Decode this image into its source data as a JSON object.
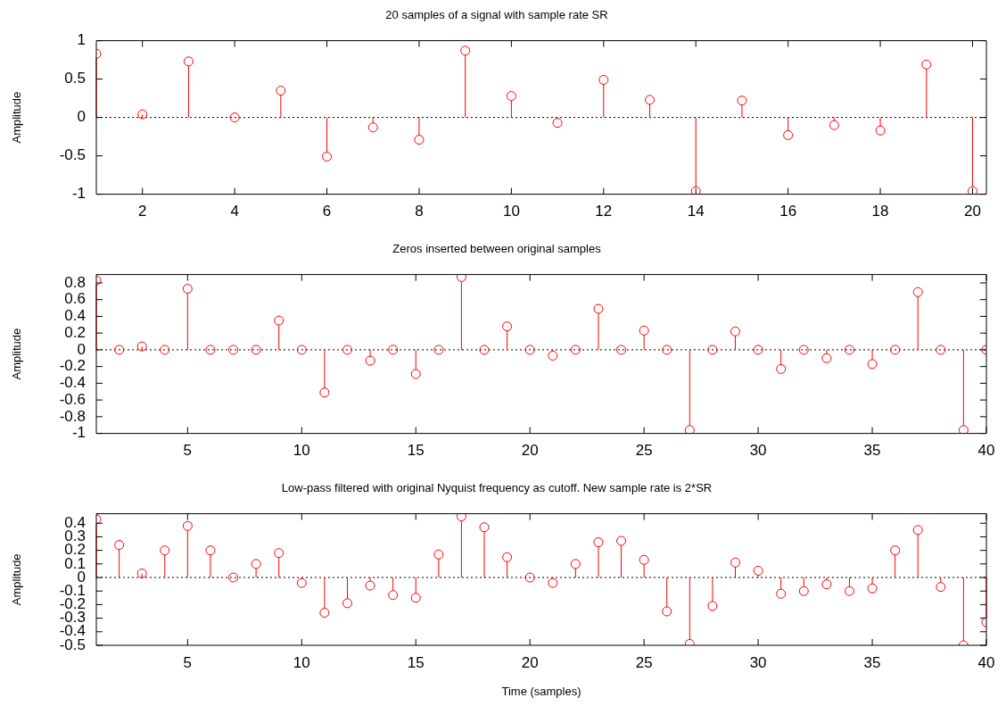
{
  "chart_data": [
    {
      "type": "lollipop",
      "title": "20 samples of a signal with sample rate SR",
      "ylabel": "Amplitude",
      "marker": "circle",
      "x": [
        1,
        2,
        3,
        4,
        5,
        6,
        7,
        8,
        9,
        10,
        11,
        12,
        13,
        14,
        15,
        16,
        17,
        18,
        19,
        20
      ],
      "series": [
        {
          "color": "#ff0000",
          "values": [
            0.83,
            0.04,
            0.73,
            0,
            0.35,
            -0.51,
            -0.13,
            -0.29,
            0.87,
            0.28,
            -0.07,
            0.49,
            0.23,
            -0.96,
            0.22,
            -0.23,
            -0.1,
            -0.17,
            0.69,
            -0.96
          ]
        }
      ],
      "xlim": [
        1,
        20.3
      ],
      "xticks": [
        2,
        4,
        6,
        8,
        10,
        12,
        14,
        16,
        18,
        20
      ],
      "ylim": [
        -1,
        1
      ],
      "yticks": [
        -1,
        -0.5,
        0,
        0.5,
        1
      ],
      "ref_lines": [
        {
          "axis": "y",
          "value": 0,
          "color": "#000000",
          "line_style": "dotted"
        }
      ]
    },
    {
      "type": "lollipop",
      "title": "Zeros inserted between original samples",
      "ylabel": "Amplitude",
      "marker": "circle",
      "x": [
        1,
        2,
        3,
        4,
        5,
        6,
        7,
        8,
        9,
        10,
        11,
        12,
        13,
        14,
        15,
        16,
        17,
        18,
        19,
        20,
        21,
        22,
        23,
        24,
        25,
        26,
        27,
        28,
        29,
        30,
        31,
        32,
        33,
        34,
        35,
        36,
        37,
        38,
        39,
        40
      ],
      "series": [
        {
          "color": "#ff0000",
          "values": [
            0.83,
            0,
            0.04,
            0,
            0.73,
            0,
            0,
            0,
            0.35,
            0,
            -0.51,
            0,
            -0.13,
            0,
            -0.29,
            0,
            0.87,
            0,
            0.28,
            0,
            -0.07,
            0,
            0.49,
            0,
            0.23,
            0,
            -0.96,
            0,
            0.22,
            0,
            -0.23,
            0,
            -0.1,
            0,
            -0.17,
            0,
            0.69,
            0,
            -0.96,
            0
          ]
        }
      ],
      "xlim": [
        1,
        40
      ],
      "xticks": [
        5,
        10,
        15,
        20,
        25,
        30,
        35,
        40
      ],
      "ylim": [
        -1,
        0.9
      ],
      "yticks": [
        -1,
        -0.8,
        -0.6,
        -0.4,
        -0.2,
        0,
        0.2,
        0.4,
        0.6,
        0.8
      ],
      "ref_lines": [
        {
          "axis": "y",
          "value": 0,
          "color": "#000000",
          "line_style": "dotted"
        }
      ]
    },
    {
      "type": "lollipop",
      "title": "Low-pass filtered with original Nyquist frequency as cutoff. New sample rate is 2*SR",
      "xlabel": "Time (samples)",
      "ylabel": "Amplitude",
      "marker": "circle",
      "x": [
        1,
        2,
        3,
        4,
        5,
        6,
        7,
        8,
        9,
        10,
        11,
        12,
        13,
        14,
        15,
        16,
        17,
        18,
        19,
        20,
        21,
        22,
        23,
        24,
        25,
        26,
        27,
        28,
        29,
        30,
        31,
        32,
        33,
        34,
        35,
        36,
        37,
        38,
        39,
        40
      ],
      "series": [
        {
          "color": "#ff0000",
          "values": [
            0.43,
            0.24,
            0.03,
            0.2,
            0.38,
            0.2,
            0,
            0.1,
            0.18,
            -0.04,
            -0.26,
            -0.19,
            -0.06,
            -0.13,
            -0.15,
            0.17,
            0.45,
            0.37,
            0.15,
            0,
            -0.04,
            0.1,
            0.26,
            0.27,
            0.13,
            -0.25,
            -0.49,
            -0.21,
            0.11,
            0.05,
            -0.12,
            -0.1,
            -0.05,
            -0.1,
            -0.08,
            0.2,
            0.35,
            -0.07,
            -0.5,
            -0.33
          ]
        }
      ],
      "xlim": [
        1,
        40
      ],
      "xticks": [
        5,
        10,
        15,
        20,
        25,
        30,
        35,
        40
      ],
      "ylim": [
        -0.5,
        0.47
      ],
      "yticks": [
        -0.5,
        -0.4,
        -0.3,
        -0.2,
        -0.1,
        0,
        0.1,
        0.2,
        0.3,
        0.4
      ],
      "ref_lines": [
        {
          "axis": "y",
          "value": 0,
          "color": "#000000",
          "line_style": "dotted"
        }
      ]
    }
  ]
}
